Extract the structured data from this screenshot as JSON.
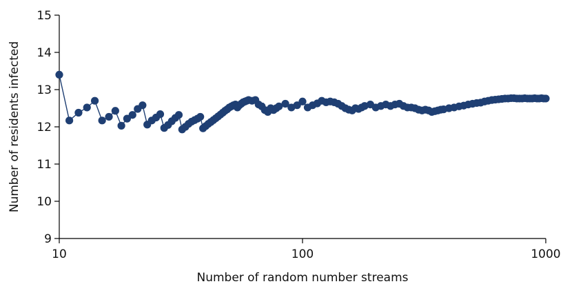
{
  "chart_data": {
    "type": "line",
    "xlabel": "Number of random number streams",
    "ylabel": "Number of residents infected",
    "xscale": "log",
    "xlim": [
      10,
      1000
    ],
    "ylim": [
      9,
      15
    ],
    "xticks": [
      10,
      100,
      1000
    ],
    "yticks": [
      9,
      10,
      11,
      12,
      13,
      14,
      15
    ],
    "grid": false,
    "series": [
      {
        "color": "#1f3f73",
        "x": [
          10,
          11,
          12,
          13,
          14,
          15,
          16,
          17,
          18,
          19,
          20,
          21,
          22,
          23,
          24,
          25,
          26,
          27,
          28,
          29,
          30,
          31,
          32,
          33,
          34,
          35,
          36,
          37,
          38,
          39,
          40,
          41,
          42,
          43,
          44,
          45,
          46,
          47,
          48,
          49,
          50,
          51,
          52,
          53,
          54,
          55,
          56,
          57,
          58,
          59,
          60,
          62,
          64,
          66,
          68,
          70,
          72,
          74,
          76,
          78,
          80,
          85,
          90,
          95,
          100,
          105,
          110,
          115,
          120,
          125,
          130,
          135,
          140,
          145,
          150,
          155,
          160,
          165,
          170,
          175,
          180,
          190,
          200,
          210,
          220,
          230,
          240,
          250,
          260,
          270,
          280,
          290,
          300,
          310,
          320,
          330,
          340,
          350,
          360,
          370,
          380,
          400,
          420,
          440,
          460,
          480,
          500,
          520,
          540,
          560,
          580,
          600,
          620,
          640,
          660,
          680,
          700,
          720,
          740,
          760,
          780,
          800,
          820,
          840,
          860,
          880,
          900,
          920,
          940,
          960,
          980,
          1000
        ],
        "y": [
          13.4,
          12.17,
          12.38,
          12.52,
          12.7,
          12.17,
          12.27,
          12.43,
          12.03,
          12.22,
          12.32,
          12.48,
          12.58,
          12.06,
          12.17,
          12.25,
          12.34,
          11.97,
          12.05,
          12.15,
          12.24,
          12.32,
          11.93,
          12.0,
          12.08,
          12.14,
          12.18,
          12.22,
          12.27,
          11.96,
          12.02,
          12.08,
          12.13,
          12.18,
          12.23,
          12.28,
          12.33,
          12.38,
          12.43,
          12.47,
          12.52,
          12.55,
          12.58,
          12.6,
          12.52,
          12.58,
          12.62,
          12.66,
          12.68,
          12.7,
          12.72,
          12.7,
          12.72,
          12.6,
          12.55,
          12.45,
          12.4,
          12.5,
          12.45,
          12.5,
          12.55,
          12.62,
          12.52,
          12.58,
          12.68,
          12.52,
          12.58,
          12.63,
          12.7,
          12.66,
          12.68,
          12.66,
          12.62,
          12.56,
          12.5,
          12.46,
          12.44,
          12.5,
          12.48,
          12.52,
          12.56,
          12.6,
          12.52,
          12.56,
          12.6,
          12.56,
          12.6,
          12.62,
          12.56,
          12.52,
          12.52,
          12.5,
          12.46,
          12.44,
          12.46,
          12.44,
          12.4,
          12.42,
          12.44,
          12.46,
          12.47,
          12.5,
          12.52,
          12.55,
          12.57,
          12.6,
          12.62,
          12.64,
          12.65,
          12.68,
          12.7,
          12.72,
          12.73,
          12.74,
          12.75,
          12.76,
          12.76,
          12.77,
          12.77,
          12.76,
          12.76,
          12.76,
          12.77,
          12.76,
          12.76,
          12.76,
          12.77,
          12.76,
          12.76,
          12.77,
          12.76,
          12.76
        ]
      }
    ]
  }
}
